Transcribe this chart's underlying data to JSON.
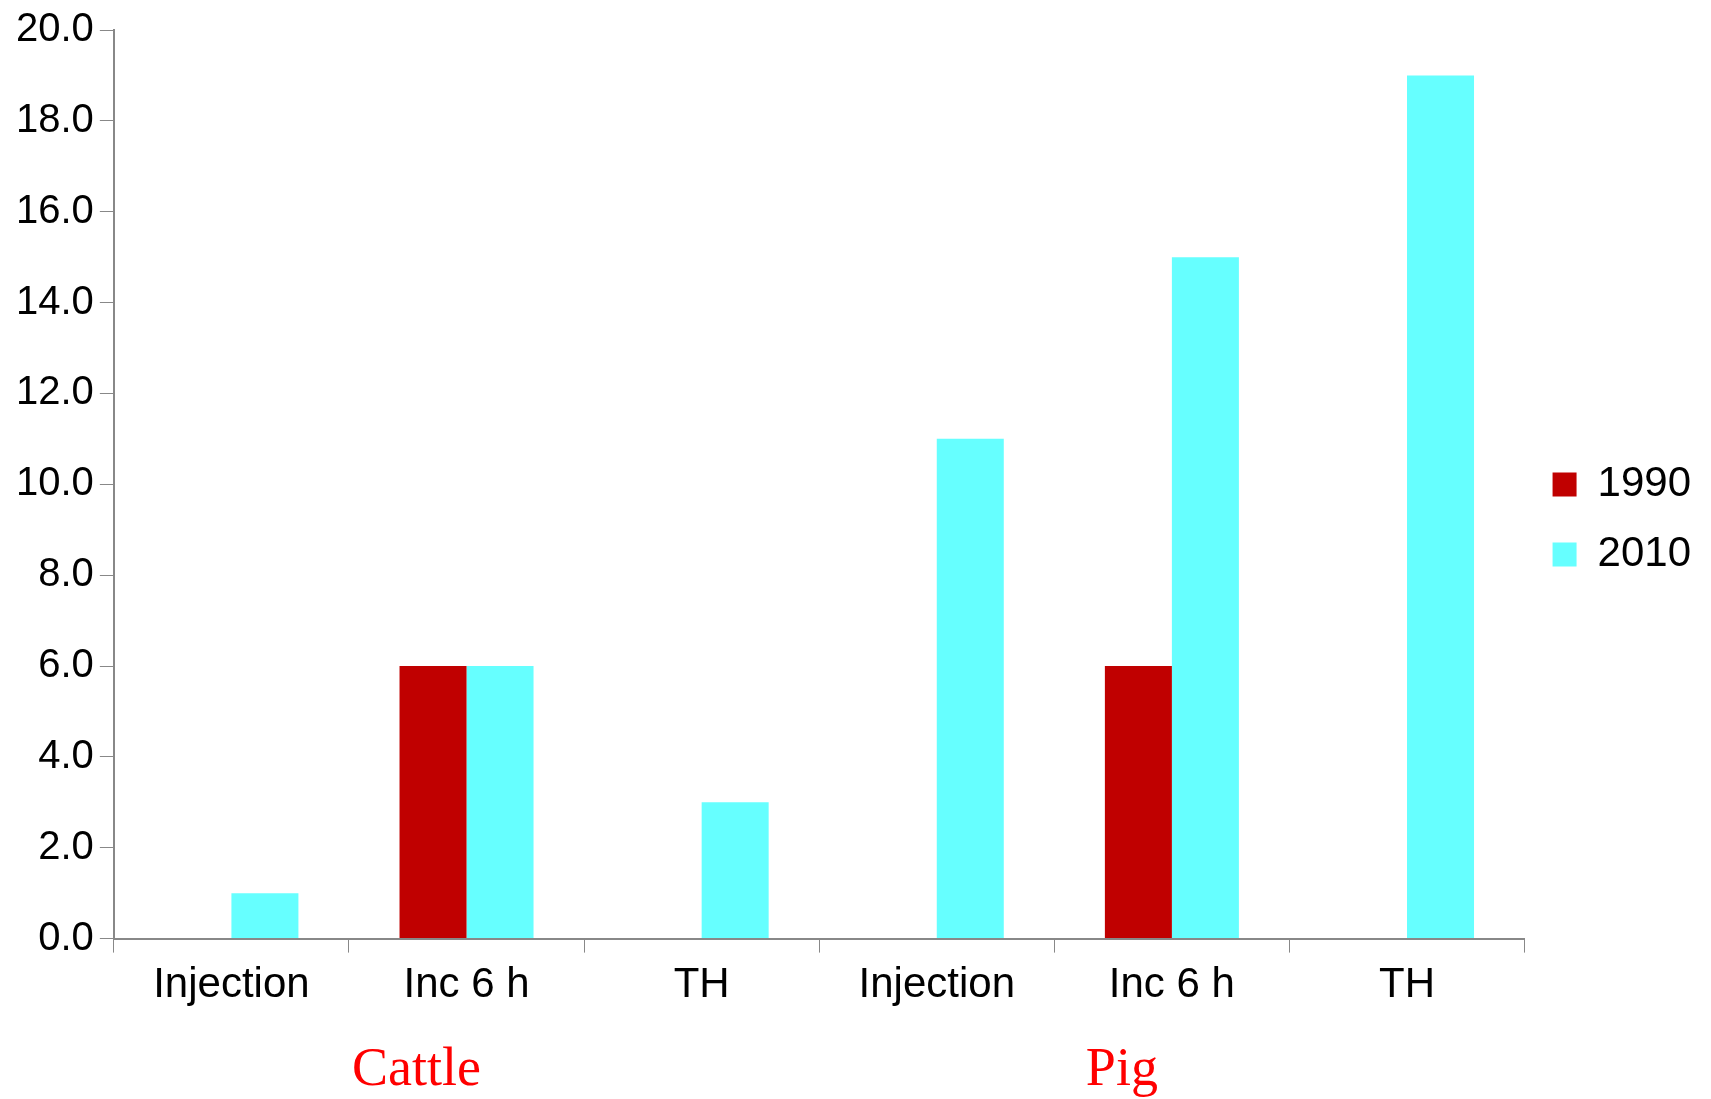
{
  "chart_data": {
    "type": "bar",
    "categories": [
      "Injection",
      "Inc 6 h",
      "TH",
      "Injection",
      "Inc 6 h",
      "TH"
    ],
    "series": [
      {
        "name": "1990",
        "color": "#c00000",
        "values": [
          null,
          6,
          null,
          null,
          6,
          null
        ]
      },
      {
        "name": "2010",
        "color": "#66ffff",
        "values": [
          1,
          6,
          3,
          11,
          15,
          19
        ]
      }
    ],
    "ylim": [
      0,
      20
    ],
    "yticks": [
      {
        "value": 0,
        "label": "0.0"
      },
      {
        "value": 2,
        "label": "2.0"
      },
      {
        "value": 4,
        "label": "4.0"
      },
      {
        "value": 6,
        "label": "6.0"
      },
      {
        "value": 8,
        "label": "8.0"
      },
      {
        "value": 10,
        "label": "10.0"
      },
      {
        "value": 12,
        "label": "12.0"
      },
      {
        "value": 14,
        "label": "14.0"
      },
      {
        "value": 16,
        "label": "16.0"
      },
      {
        "value": 18,
        "label": "18.0"
      },
      {
        "value": 20,
        "label": "20.0"
      }
    ],
    "grid": false,
    "legend": "right",
    "annotations": [
      "Cattle",
      "Pig"
    ]
  }
}
